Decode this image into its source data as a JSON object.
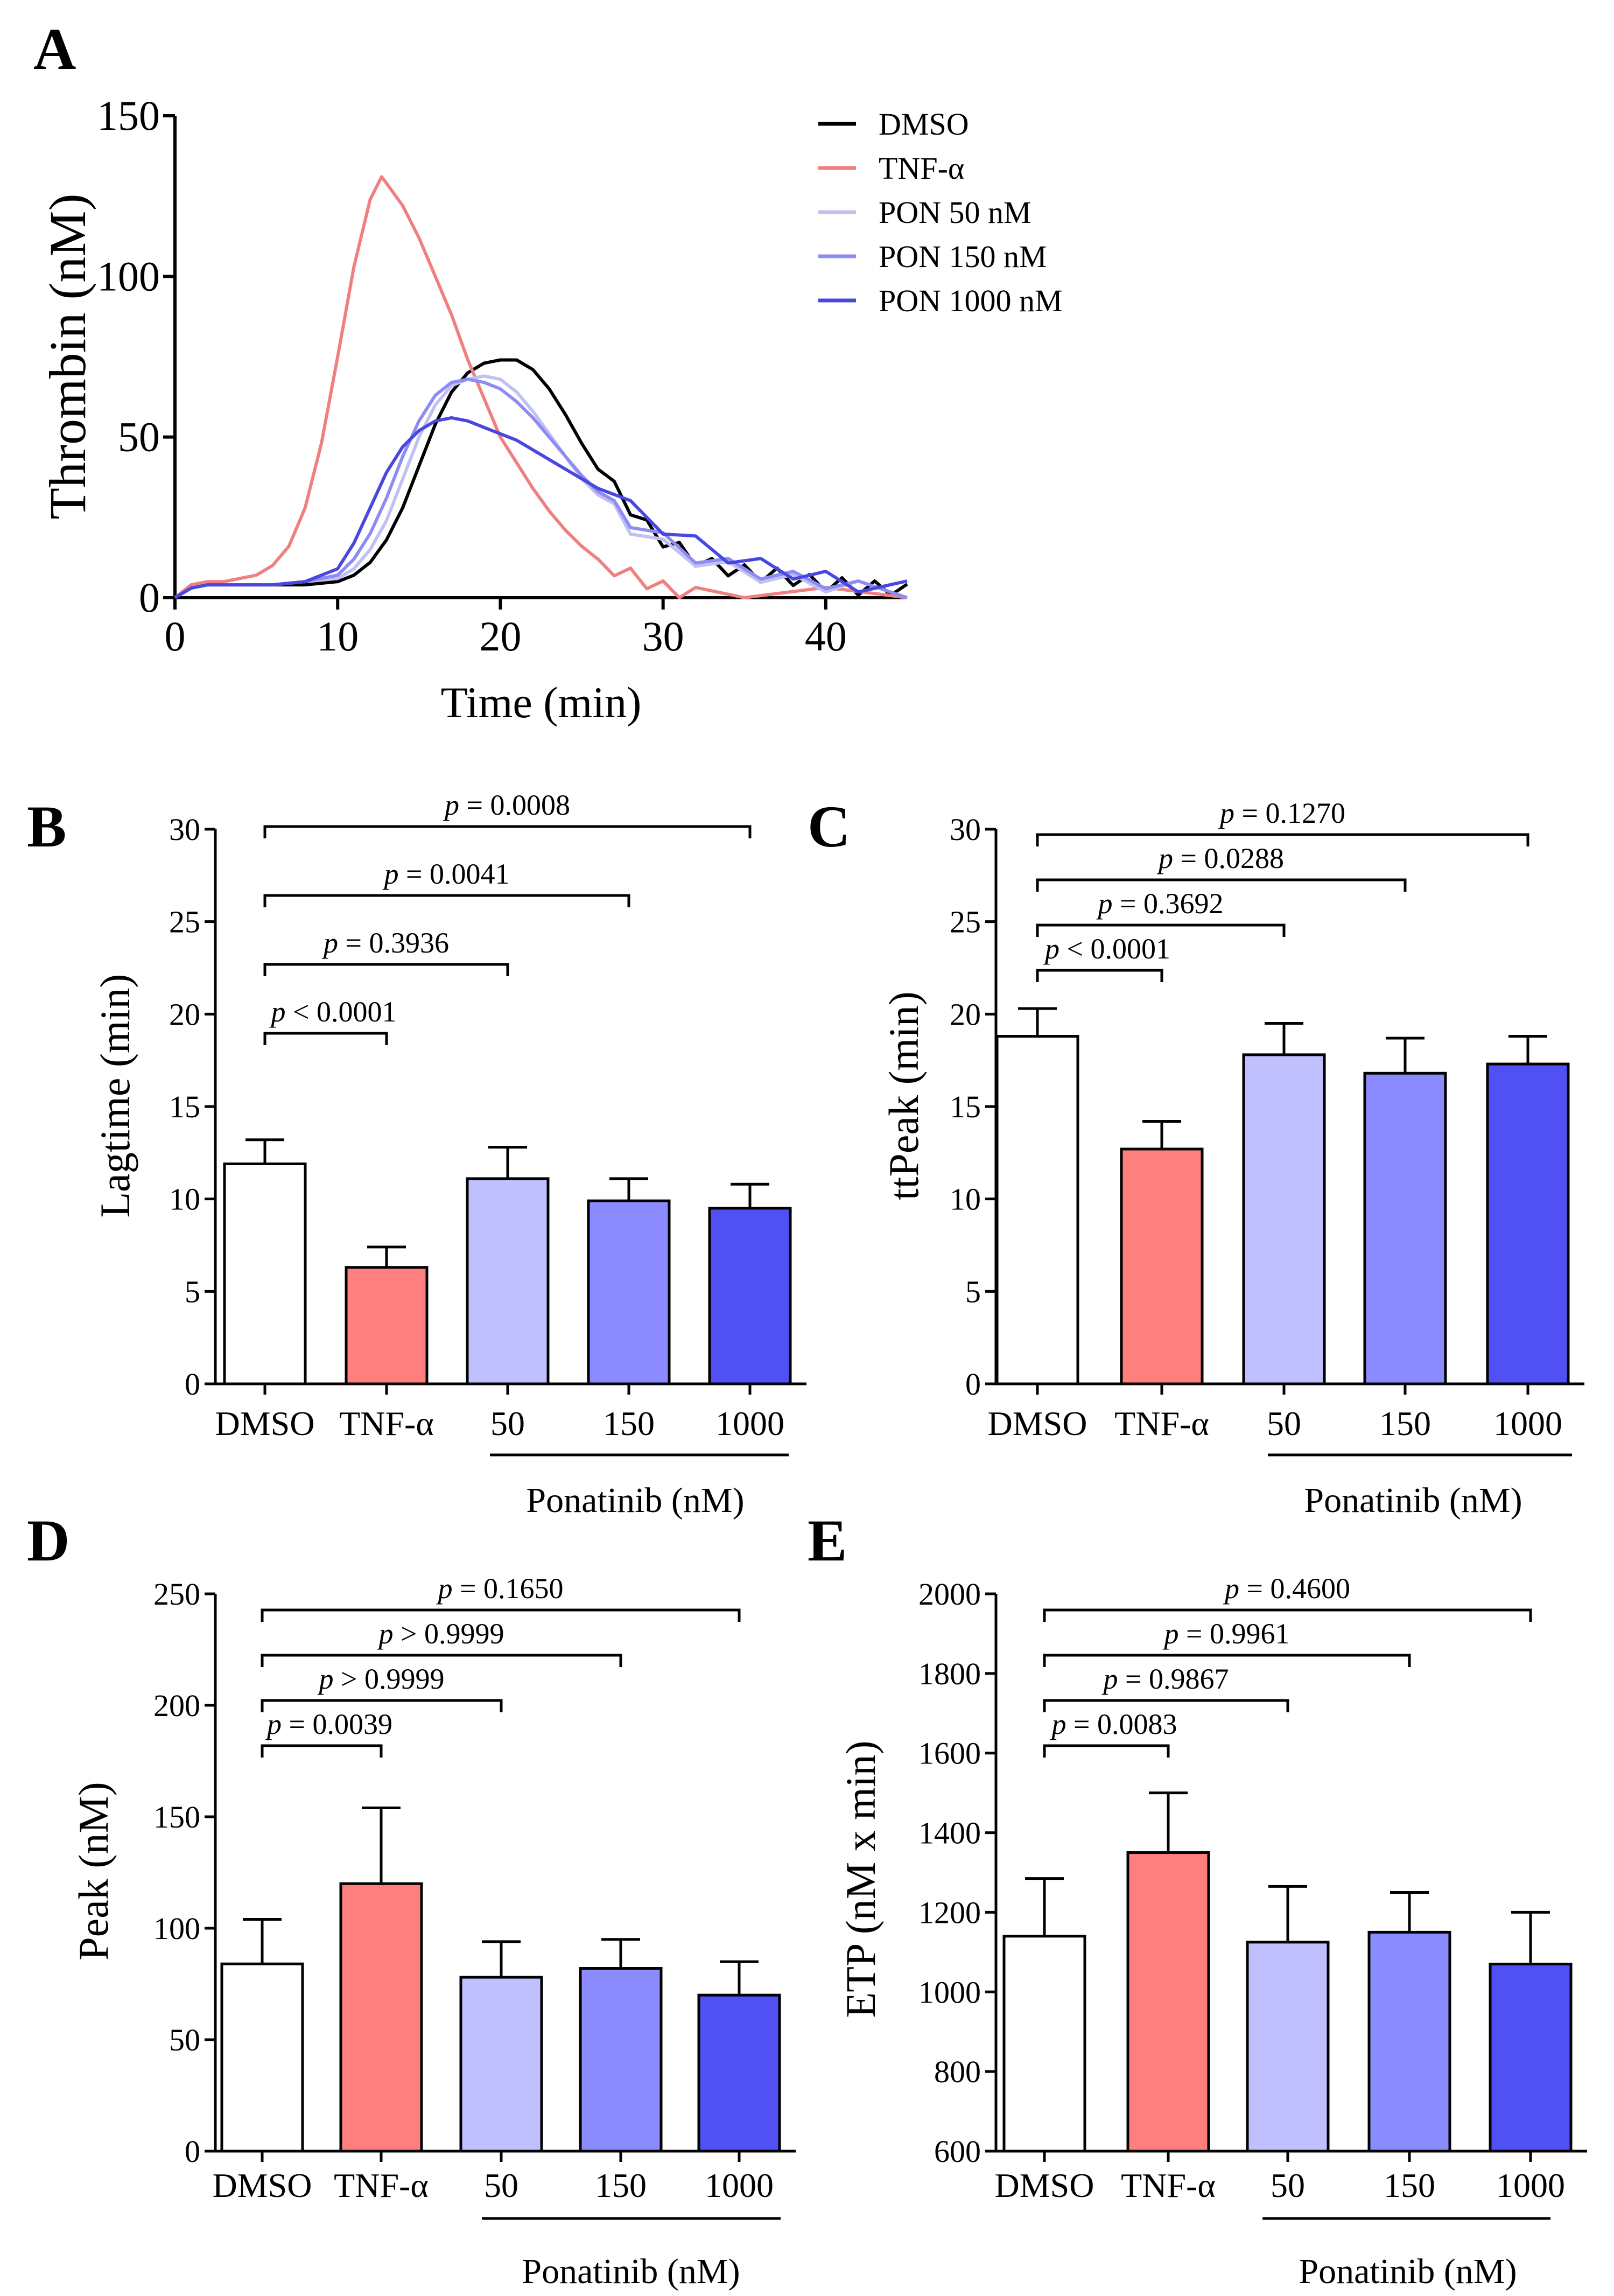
{
  "chart_data": [
    {
      "panel": "A",
      "type": "line",
      "xlabel": "Time (min)",
      "ylabel": "Thrombin (nM)",
      "xlim": [
        0,
        45
      ],
      "ylim": [
        0,
        150
      ],
      "xticks": [
        "0",
        "10",
        "20",
        "30",
        "40"
      ],
      "yticks": [
        "0",
        "50",
        "100",
        "150"
      ],
      "legend_position": "top-right",
      "series": [
        {
          "name": "DMSO",
          "color": "#000000",
          "x": [
            0,
            1,
            2,
            4,
            6,
            8,
            10,
            11,
            12,
            13,
            14,
            15,
            16,
            17,
            18,
            19,
            20,
            21,
            22,
            23,
            24,
            25,
            26,
            27,
            28,
            29,
            30,
            31,
            32,
            33,
            34,
            35,
            36,
            37,
            38,
            39,
            40,
            41,
            42,
            43,
            44,
            45
          ],
          "y": [
            0,
            3,
            4,
            4,
            4,
            4,
            5,
            7,
            11,
            18,
            28,
            41,
            54,
            64,
            70,
            73,
            74,
            74,
            71,
            65,
            57,
            48,
            40,
            34,
            28,
            22,
            18,
            15,
            12,
            10,
            9,
            8,
            7,
            7,
            6,
            5,
            4,
            4,
            3,
            3,
            3,
            2
          ]
        },
        {
          "name": "TNF-α",
          "color": "#f08080",
          "x": [
            0,
            1,
            2,
            3,
            4,
            5,
            6,
            7,
            8,
            9,
            10,
            11,
            12,
            12.7,
            13,
            14,
            15,
            16,
            17,
            18,
            19,
            20,
            21,
            22,
            23,
            24,
            25,
            26,
            27,
            28,
            29,
            30,
            31,
            32,
            35,
            40,
            45
          ],
          "y": [
            0,
            4,
            5,
            5,
            6,
            7,
            10,
            16,
            28,
            48,
            75,
            103,
            124,
            131,
            129,
            122,
            112,
            100,
            88,
            74,
            62,
            50,
            42,
            34,
            27,
            21,
            16,
            12,
            9,
            7,
            5,
            3,
            2,
            1,
            1,
            1,
            0
          ]
        },
        {
          "name": "PON 50 nM",
          "color": "#c0c0f4",
          "x": [
            0,
            1,
            2,
            4,
            6,
            8,
            10,
            11,
            12,
            13,
            14,
            15,
            16,
            17,
            18,
            19,
            20,
            21,
            22,
            23,
            24,
            25,
            26,
            27,
            28,
            30,
            32,
            34,
            36,
            38,
            40,
            42,
            45
          ],
          "y": [
            0,
            3,
            4,
            4,
            4,
            5,
            6,
            9,
            15,
            24,
            37,
            50,
            60,
            66,
            68,
            69,
            68,
            64,
            58,
            51,
            44,
            37,
            32,
            27,
            22,
            16,
            12,
            9,
            7,
            5,
            4,
            3,
            2
          ]
        },
        {
          "name": "PON 150 nM",
          "color": "#8c8cf4",
          "x": [
            0,
            1,
            2,
            4,
            6,
            8,
            10,
            11,
            12,
            13,
            14,
            15,
            16,
            17,
            18,
            19,
            20,
            21,
            22,
            23,
            24,
            25,
            26,
            27,
            28,
            30,
            32,
            34,
            36,
            38,
            40,
            42,
            45
          ],
          "y": [
            0,
            3,
            4,
            4,
            4,
            5,
            7,
            12,
            20,
            31,
            44,
            55,
            63,
            67,
            68,
            67,
            65,
            61,
            56,
            50,
            44,
            38,
            33,
            28,
            24,
            18,
            13,
            10,
            8,
            6,
            5,
            3,
            2
          ]
        },
        {
          "name": "PON 1000 nM",
          "color": "#4848e0",
          "x": [
            0,
            1,
            2,
            4,
            6,
            8,
            10,
            11,
            12,
            13,
            14,
            15,
            16,
            17,
            18,
            19,
            20,
            21,
            22,
            23,
            24,
            25,
            26,
            28,
            30,
            32,
            34,
            36,
            38,
            40,
            42,
            45
          ],
          "y": [
            0,
            3,
            4,
            4,
            4,
            5,
            9,
            17,
            28,
            39,
            47,
            52,
            55,
            56,
            55,
            53,
            51,
            49,
            46,
            43,
            40,
            37,
            34,
            28,
            22,
            17,
            13,
            10,
            8,
            6,
            4,
            3
          ]
        }
      ]
    },
    {
      "panel": "B",
      "type": "bar",
      "ylabel": "Lagtime (min)",
      "ylim": [
        0,
        30
      ],
      "yticks": [
        "0",
        "5",
        "10",
        "15",
        "20",
        "25",
        "30"
      ],
      "categories": [
        "DMSO",
        "TNF-α",
        "50",
        "150",
        "1000"
      ],
      "group_label": "Ponatinib (nM)",
      "values": [
        11.9,
        6.3,
        11.1,
        9.9,
        9.5
      ],
      "errors": [
        1.3,
        1.1,
        1.7,
        1.2,
        1.3
      ],
      "colors": [
        "#ffffff",
        "#ff7f7f",
        "#c0c0ff",
        "#8b8bff",
        "#5050f5"
      ],
      "comparisons": [
        {
          "to": 1,
          "label": "p < 0.0001"
        },
        {
          "to": 2,
          "label": "p = 0.3936"
        },
        {
          "to": 3,
          "label": "p = 0.0041"
        },
        {
          "to": 4,
          "label": "p = 0.0008"
        }
      ]
    },
    {
      "panel": "C",
      "type": "bar",
      "ylabel": "ttPeak (min)",
      "ylim": [
        0,
        30
      ],
      "yticks": [
        "0",
        "5",
        "10",
        "15",
        "20",
        "25",
        "30"
      ],
      "categories": [
        "DMSO",
        "TNF-α",
        "50",
        "150",
        "1000"
      ],
      "group_label": "Ponatinib (nM)",
      "values": [
        18.8,
        12.7,
        17.8,
        16.8,
        17.3
      ],
      "errors": [
        1.5,
        1.5,
        1.7,
        1.9,
        1.5
      ],
      "colors": [
        "#ffffff",
        "#ff7f7f",
        "#c0c0ff",
        "#8b8bff",
        "#5050f5"
      ],
      "comparisons": [
        {
          "to": 1,
          "label": "p < 0.0001"
        },
        {
          "to": 2,
          "label": "p = 0.3692"
        },
        {
          "to": 3,
          "label": "p = 0.0288"
        },
        {
          "to": 4,
          "label": "p = 0.1270"
        }
      ]
    },
    {
      "panel": "D",
      "type": "bar",
      "ylabel": "Peak (nM)",
      "ylim": [
        0,
        250
      ],
      "yticks": [
        "0",
        "50",
        "100",
        "150",
        "200",
        "250"
      ],
      "categories": [
        "DMSO",
        "TNF-α",
        "50",
        "150",
        "1000"
      ],
      "group_label": "Ponatinib (nM)",
      "values": [
        84,
        120,
        78,
        82,
        70
      ],
      "errors": [
        20,
        34,
        16,
        13,
        15
      ],
      "colors": [
        "#ffffff",
        "#ff7f7f",
        "#c0c0ff",
        "#8b8bff",
        "#5050f5"
      ],
      "comparisons": [
        {
          "to": 1,
          "label": "p = 0.0039"
        },
        {
          "to": 2,
          "label": "p > 0.9999"
        },
        {
          "to": 3,
          "label": "p > 0.9999"
        },
        {
          "to": 4,
          "label": "p = 0.1650"
        }
      ]
    },
    {
      "panel": "E",
      "type": "bar",
      "ylabel": "ETP (nM x min)",
      "ylim": [
        600,
        2000
      ],
      "yticks": [
        "600",
        "800",
        "1000",
        "1200",
        "1400",
        "1600",
        "1800",
        "2000"
      ],
      "categories": [
        "DMSO",
        "TNF-α",
        "50",
        "150",
        "1000"
      ],
      "group_label": "Ponatinib (nM)",
      "values": [
        1140,
        1350,
        1125,
        1150,
        1070
      ],
      "errors": [
        145,
        150,
        140,
        100,
        130
      ],
      "colors": [
        "#ffffff",
        "#ff7f7f",
        "#c0c0ff",
        "#8b8bff",
        "#5050f5"
      ],
      "comparisons": [
        {
          "to": 1,
          "label": "p = 0.0083"
        },
        {
          "to": 2,
          "label": "p = 0.9867"
        },
        {
          "to": 3,
          "label": "p = 0.9961"
        },
        {
          "to": 4,
          "label": "p = 0.4600"
        }
      ]
    }
  ]
}
